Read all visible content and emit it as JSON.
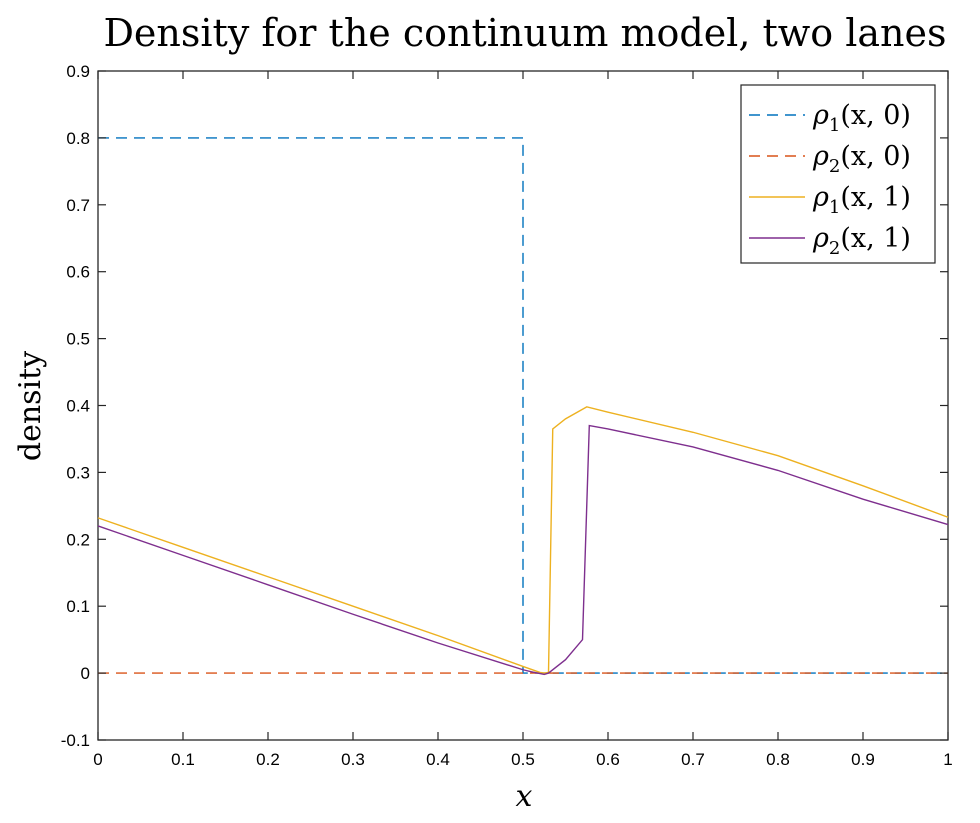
{
  "chart_data": {
    "type": "line",
    "title": "Density for the continuum model, two lanes",
    "xlabel": "x",
    "ylabel": "density",
    "xlim": [
      0,
      1
    ],
    "ylim": [
      -0.1,
      0.9
    ],
    "xticks": [
      0,
      0.1,
      0.2,
      0.3,
      0.4,
      0.5,
      0.6,
      0.7,
      0.8,
      0.9,
      1
    ],
    "xtick_labels": [
      "0",
      "0.1",
      "0.2",
      "0.3",
      "0.4",
      "0.5",
      "0.6",
      "0.7",
      "0.8",
      "0.9",
      "1"
    ],
    "yticks": [
      -0.1,
      0,
      0.1,
      0.2,
      0.3,
      0.4,
      0.5,
      0.6,
      0.7,
      0.8,
      0.9
    ],
    "ytick_labels": [
      "-0.1",
      "0",
      "0.1",
      "0.2",
      "0.3",
      "0.4",
      "0.5",
      "0.6",
      "0.7",
      "0.8",
      "0.9"
    ],
    "grid": false,
    "legend_position": "top-right",
    "series": [
      {
        "name": "ρ1(x,0)",
        "legend_base": "ρ",
        "legend_sub": "1",
        "legend_args": "(x, 0)",
        "color": "#0072BD",
        "dash": "dashed",
        "x": [
          0,
          0.5,
          0.5,
          1
        ],
        "y": [
          0.8,
          0.8,
          0,
          0
        ]
      },
      {
        "name": "ρ2(x,0)",
        "legend_base": "ρ",
        "legend_sub": "2",
        "legend_args": "(x, 0)",
        "color": "#D95319",
        "dash": "dashed",
        "x": [
          0,
          1
        ],
        "y": [
          0,
          0
        ]
      },
      {
        "name": "ρ1(x,1)",
        "legend_base": "ρ",
        "legend_sub": "1",
        "legend_args": "(x, 1)",
        "color": "#EDB120",
        "dash": "solid",
        "x": [
          0,
          0.1,
          0.2,
          0.3,
          0.4,
          0.5,
          0.52,
          0.525,
          0.53,
          0.535,
          0.55,
          0.575,
          0.6,
          0.7,
          0.8,
          0.9,
          1
        ],
        "y": [
          0.232,
          0.188,
          0.144,
          0.1,
          0.056,
          0.01,
          0.001,
          0,
          0.001,
          0.365,
          0.38,
          0.398,
          0.39,
          0.36,
          0.325,
          0.28,
          0.233
        ]
      },
      {
        "name": "ρ2(x,1)",
        "legend_base": "ρ",
        "legend_sub": "2",
        "legend_args": "(x, 1)",
        "color": "#7E2F8E",
        "dash": "solid",
        "x": [
          0,
          0.1,
          0.2,
          0.3,
          0.4,
          0.5,
          0.51,
          0.525,
          0.53,
          0.55,
          0.57,
          0.578,
          0.6,
          0.7,
          0.8,
          0.9,
          1
        ],
        "y": [
          0.22,
          0.176,
          0.132,
          0.088,
          0.045,
          0.005,
          0.002,
          -0.002,
          0,
          0.02,
          0.05,
          0.37,
          0.365,
          0.338,
          0.303,
          0.26,
          0.222
        ]
      }
    ]
  }
}
